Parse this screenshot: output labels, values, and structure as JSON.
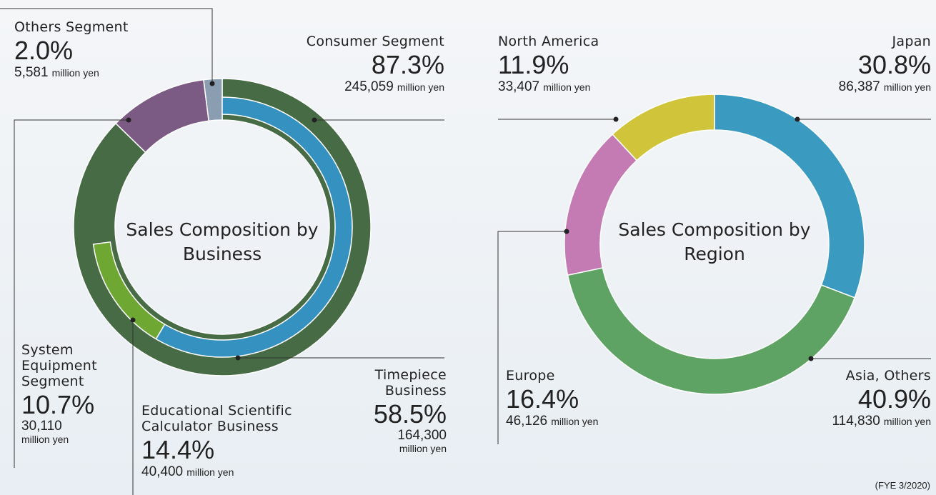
{
  "chart_data": [
    {
      "type": "donut",
      "title": "Sales Composition by Business",
      "unit": "million yen",
      "series": [
        {
          "categories": [
            "Consumer Segment",
            "System Equipment Segment",
            "Others Segment"
          ],
          "values": [
            87.3,
            10.7,
            2.0
          ],
          "value_labels": [
            "87.3%",
            "10.7%",
            "2.0%"
          ],
          "amounts": [
            245059,
            30110,
            5581
          ],
          "amount_labels": [
            "245,059",
            "30,110",
            "5,581"
          ],
          "colors": [
            "#466b45",
            "#7b5a83",
            "#8b9db1"
          ]
        },
        {
          "categories": [
            "Timepiece Business",
            "Educational Scientific Calculator Business"
          ],
          "values": [
            58.5,
            14.4
          ],
          "value_labels": [
            "58.5%",
            "14.4%"
          ],
          "amounts": [
            164300,
            40400
          ],
          "amount_labels": [
            "164,300",
            "40,400"
          ],
          "colors": [
            "#3591c0",
            "#6ea832"
          ]
        }
      ]
    },
    {
      "type": "donut",
      "title": "Sales Composition by Region",
      "unit": "million yen",
      "series": [
        {
          "categories": [
            "Japan",
            "Asia, Others",
            "Europe",
            "North America"
          ],
          "values": [
            30.8,
            40.9,
            16.4,
            11.9
          ],
          "value_labels": [
            "30.8%",
            "40.9%",
            "16.4%",
            "11.9%"
          ],
          "amounts": [
            86387,
            114830,
            46126,
            33407
          ],
          "amount_labels": [
            "86,387",
            "114,830",
            "46,126",
            "33,407"
          ],
          "colors": [
            "#3a9abf",
            "#5ea364",
            "#c47bb3",
            "#cfc43a"
          ]
        }
      ]
    }
  ],
  "footnote": "(FYE 3/2020)"
}
